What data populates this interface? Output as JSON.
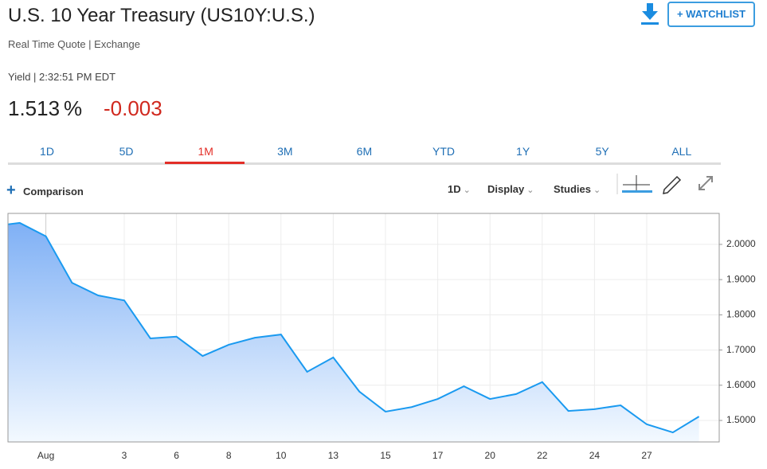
{
  "header": {
    "title": "U.S. 10 Year Treasury (US10Y:U.S.)",
    "subtitle": "Real Time Quote | Exchange",
    "watchlist": "+ WATCHLIST",
    "time": "Yield | 2:32:51 PM EDT",
    "price": "1.513",
    "unit": "%",
    "change": "-0.003"
  },
  "tabs": {
    "items": [
      "1D",
      "5D",
      "1M",
      "3M",
      "6M",
      "YTD",
      "1Y",
      "5Y",
      "ALL"
    ],
    "active": 2
  },
  "toolbar": {
    "comparison": "Comparison",
    "interval": "1D",
    "display": "Display",
    "studies": "Studies"
  },
  "chart_data": {
    "type": "area",
    "categories": [
      null,
      null,
      "Aug",
      null,
      null,
      "3",
      null,
      "6",
      null,
      "8",
      null,
      "10",
      null,
      "13",
      null,
      "15",
      null,
      "17",
      null,
      "20",
      null,
      "22",
      null,
      "24",
      null,
      "27",
      null,
      null
    ],
    "series": [
      {
        "name": "US10Y",
        "color": "#1a9af0",
        "values": [
          2.052,
          2.061,
          2.023,
          1.891,
          1.855,
          1.841,
          1.733,
          1.738,
          1.683,
          1.715,
          1.735,
          1.744,
          1.638,
          1.679,
          1.582,
          1.525,
          1.538,
          1.561,
          1.597,
          1.561,
          1.575,
          1.609,
          1.527,
          1.532,
          1.543,
          1.489,
          1.466,
          1.511
        ]
      }
    ],
    "ylim": [
      1.439,
      2.088
    ],
    "yticks": [
      {
        "value": 1.5,
        "label": "1.5000"
      },
      {
        "value": 1.6,
        "label": "1.6000"
      },
      {
        "value": 1.7,
        "label": "1.7000"
      },
      {
        "value": 1.8,
        "label": "1.8000"
      },
      {
        "value": 1.9,
        "label": "1.9000"
      },
      {
        "value": 2.0,
        "label": "2.0000"
      }
    ],
    "grid": true
  }
}
